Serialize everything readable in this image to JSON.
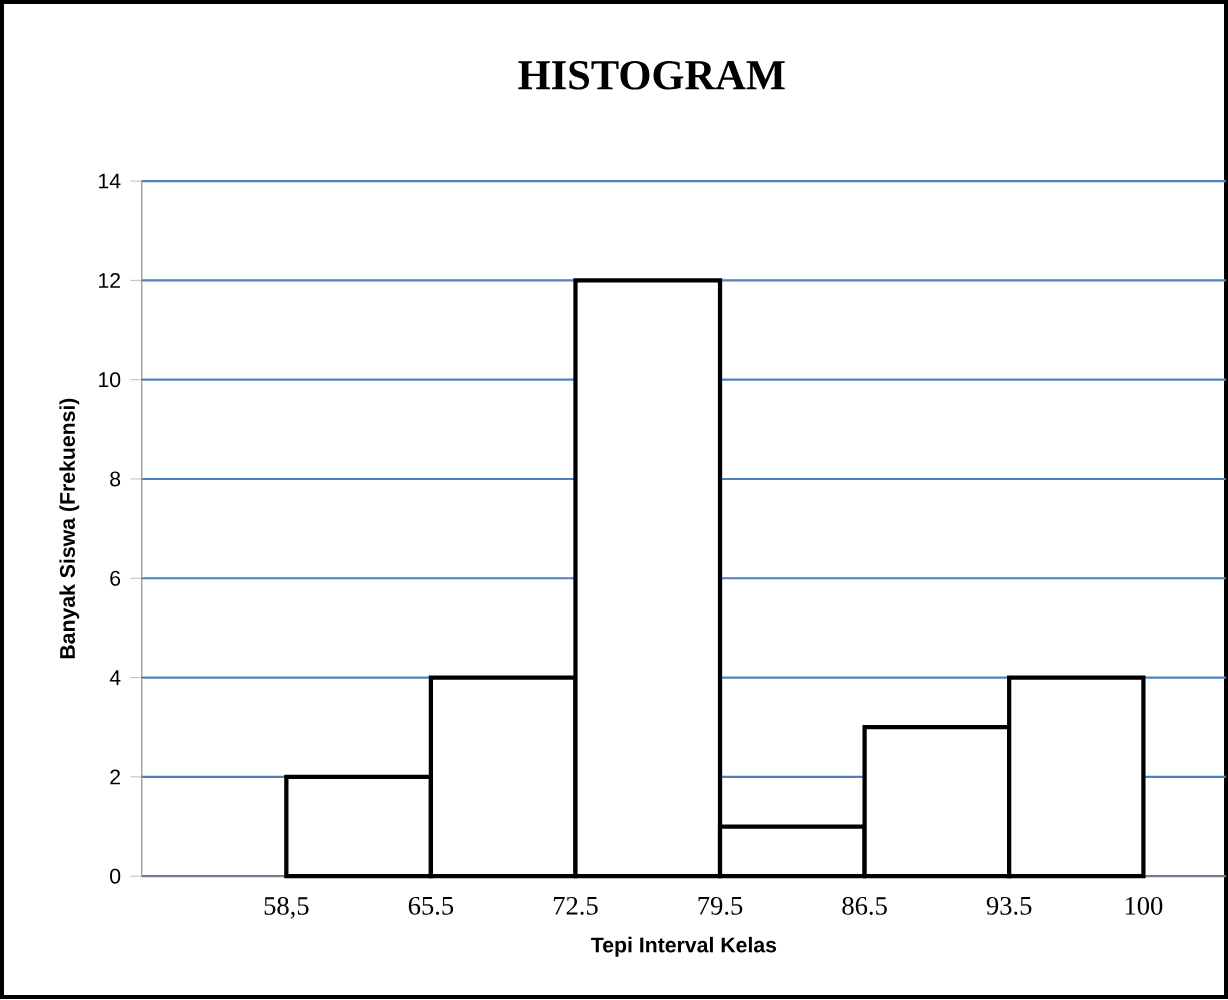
{
  "chart_data": {
    "type": "histogram",
    "title": "HISTOGRAM",
    "xlabel": "Tepi Interval Kelas",
    "ylabel": "Banyak Siswa (Frekuensi)",
    "bins": [
      58.5,
      65.5,
      72.5,
      79.5,
      86.5,
      93.5,
      100
    ],
    "values": [
      2,
      4,
      12,
      1,
      3,
      4
    ],
    "color": "#ffffff",
    "xlim": [
      51.5,
      104
    ],
    "xticks": [
      {
        "value": 58.5,
        "label": "58,5"
      },
      65.5,
      72.5,
      79.5,
      86.5,
      93.5,
      100
    ],
    "ylim": [
      0,
      14
    ],
    "yticks": [
      0,
      2,
      4,
      6,
      8,
      10,
      12,
      14
    ],
    "grid": "y"
  }
}
